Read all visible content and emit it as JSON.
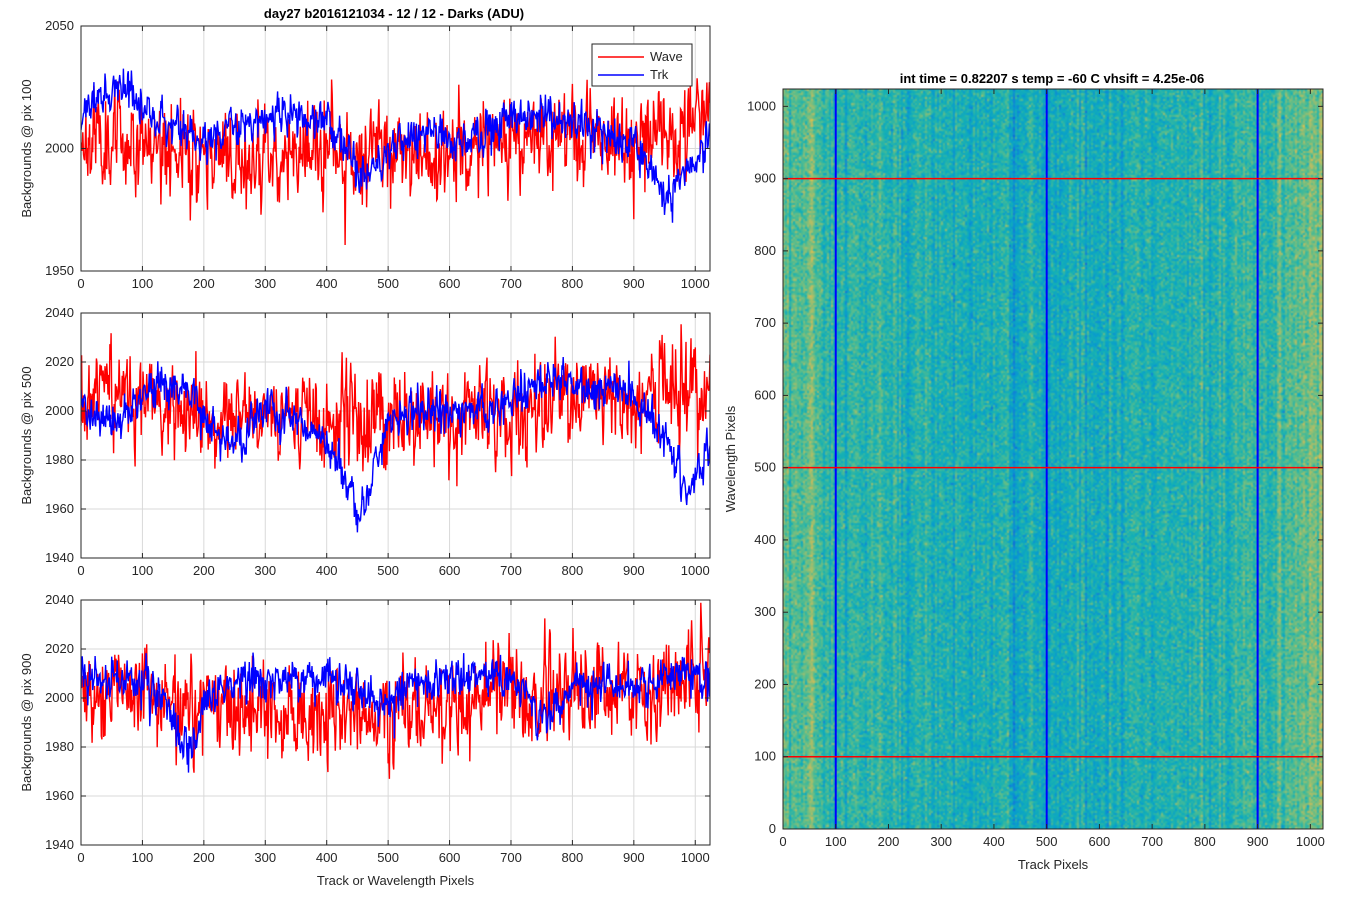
{
  "figure": {
    "suptitle": "day27 b2016121034 - 12 / 12 - Darks (ADU)",
    "colors": {
      "wave": "#ff0000",
      "trk": "#0000ff",
      "axis": "#262626",
      "grid": "#d9d9d9"
    }
  },
  "chart_data": [
    {
      "type": "line",
      "title": "day27 b2016121034 - 12 / 12 - Darks (ADU)",
      "xlabel": "",
      "ylabel": "Backgrounds @ pix 100",
      "xlim": [
        0,
        1024
      ],
      "ylim": [
        1950,
        2050
      ],
      "xticks": [
        0,
        100,
        200,
        300,
        400,
        500,
        600,
        700,
        800,
        900,
        1000
      ],
      "yticks": [
        1950,
        2000,
        2050
      ],
      "grid": true,
      "legend": {
        "position": "top-right",
        "entries": [
          "Wave",
          "Trk"
        ]
      },
      "series": [
        {
          "name": "Wave",
          "color": "#ff0000",
          "mean": 2003,
          "noise": 9,
          "seed": 11,
          "anchors": [
            [
              0,
              2005
            ],
            [
              100,
              2004
            ],
            [
              200,
              1996
            ],
            [
              300,
              1997
            ],
            [
              400,
              1999
            ],
            [
              500,
              2000
            ],
            [
              600,
              1998
            ],
            [
              700,
              2003
            ],
            [
              800,
              2005
            ],
            [
              900,
              2004
            ],
            [
              1024,
              2010
            ]
          ]
        },
        {
          "name": "Trk",
          "color": "#0000ff",
          "mean": 2008,
          "noise": 4,
          "seed": 23,
          "anchors": [
            [
              0,
              2012
            ],
            [
              30,
              2020
            ],
            [
              60,
              2028
            ],
            [
              100,
              2016
            ],
            [
              150,
              2008
            ],
            [
              200,
              2004
            ],
            [
              250,
              2008
            ],
            [
              300,
              2012
            ],
            [
              350,
              2014
            ],
            [
              400,
              2010
            ],
            [
              440,
              1998
            ],
            [
              460,
              1988
            ],
            [
              500,
              2000
            ],
            [
              550,
              2006
            ],
            [
              600,
              2005
            ],
            [
              650,
              2003
            ],
            [
              700,
              2010
            ],
            [
              750,
              2014
            ],
            [
              800,
              2012
            ],
            [
              850,
              2006
            ],
            [
              900,
              2002
            ],
            [
              930,
              1992
            ],
            [
              950,
              1978
            ],
            [
              990,
              1990
            ],
            [
              1024,
              2004
            ]
          ]
        }
      ]
    },
    {
      "type": "line",
      "title": "",
      "xlabel": "",
      "ylabel": "Backgrounds @ pix 500",
      "xlim": [
        0,
        1024
      ],
      "ylim": [
        1940,
        2040
      ],
      "xticks": [
        0,
        100,
        200,
        300,
        400,
        500,
        600,
        700,
        800,
        900,
        1000
      ],
      "yticks": [
        1940,
        1960,
        1980,
        2000,
        2020,
        2040
      ],
      "grid": true,
      "series": [
        {
          "name": "Wave",
          "color": "#ff0000",
          "mean": 2000,
          "noise": 9,
          "seed": 37,
          "anchors": [
            [
              0,
              2004
            ],
            [
              100,
              2008
            ],
            [
              200,
              1994
            ],
            [
              300,
              1997
            ],
            [
              400,
              1998
            ],
            [
              500,
              1997
            ],
            [
              600,
              2000
            ],
            [
              700,
              2000
            ],
            [
              800,
              2004
            ],
            [
              900,
              2006
            ],
            [
              1024,
              2010
            ]
          ]
        },
        {
          "name": "Trk",
          "color": "#0000ff",
          "mean": 2000,
          "noise": 4,
          "seed": 41,
          "anchors": [
            [
              0,
              2002
            ],
            [
              30,
              1996
            ],
            [
              60,
              1996
            ],
            [
              100,
              2006
            ],
            [
              150,
              2012
            ],
            [
              180,
              2006
            ],
            [
              200,
              1996
            ],
            [
              250,
              1986
            ],
            [
              300,
              2002
            ],
            [
              350,
              1996
            ],
            [
              400,
              1988
            ],
            [
              430,
              1974
            ],
            [
              450,
              1958
            ],
            [
              470,
              1970
            ],
            [
              500,
              1996
            ],
            [
              550,
              2000
            ],
            [
              600,
              2000
            ],
            [
              650,
              2000
            ],
            [
              700,
              2004
            ],
            [
              750,
              2012
            ],
            [
              800,
              2012
            ],
            [
              850,
              2010
            ],
            [
              900,
              2006
            ],
            [
              950,
              1990
            ],
            [
              980,
              1968
            ],
            [
              1000,
              1974
            ],
            [
              1024,
              1986
            ]
          ]
        }
      ]
    },
    {
      "type": "line",
      "title": "",
      "xlabel": "Track or Wavelength Pixels",
      "ylabel": "Backgrounds @ pix 900",
      "xlim": [
        0,
        1024
      ],
      "ylim": [
        1940,
        2040
      ],
      "xticks": [
        0,
        100,
        200,
        300,
        400,
        500,
        600,
        700,
        800,
        900,
        1000
      ],
      "yticks": [
        1940,
        1960,
        1980,
        2000,
        2020,
        2040
      ],
      "grid": true,
      "series": [
        {
          "name": "Wave",
          "color": "#ff0000",
          "mean": 1998,
          "noise": 9,
          "seed": 53,
          "anchors": [
            [
              0,
              2002
            ],
            [
              100,
              2002
            ],
            [
              200,
              1996
            ],
            [
              300,
              1995
            ],
            [
              400,
              1995
            ],
            [
              500,
              1994
            ],
            [
              600,
              1996
            ],
            [
              700,
              2000
            ],
            [
              800,
              2002
            ],
            [
              900,
              2004
            ],
            [
              1024,
              2012
            ]
          ]
        },
        {
          "name": "Trk",
          "color": "#0000ff",
          "mean": 2005,
          "noise": 4,
          "seed": 67,
          "anchors": [
            [
              0,
              2008
            ],
            [
              50,
              2008
            ],
            [
              100,
              2008
            ],
            [
              140,
              1996
            ],
            [
              160,
              1982
            ],
            [
              180,
              1976
            ],
            [
              200,
              1996
            ],
            [
              250,
              2006
            ],
            [
              300,
              2008
            ],
            [
              350,
              2006
            ],
            [
              400,
              2008
            ],
            [
              450,
              2004
            ],
            [
              500,
              2000
            ],
            [
              550,
              2006
            ],
            [
              600,
              2008
            ],
            [
              650,
              2006
            ],
            [
              700,
              2010
            ],
            [
              750,
              1990
            ],
            [
              800,
              2006
            ],
            [
              850,
              2006
            ],
            [
              900,
              2006
            ],
            [
              950,
              2008
            ],
            [
              1000,
              2010
            ],
            [
              1024,
              2012
            ]
          ]
        }
      ]
    },
    {
      "type": "heatmap",
      "title": "int time = 0.82207 s   temp = -60 C   vhsift = 4.25e-06",
      "xlabel": "Track Pixels",
      "ylabel": "Wavelength Pixels",
      "xlim": [
        0,
        1024
      ],
      "ylim": [
        0,
        1024
      ],
      "xticks": [
        0,
        100,
        200,
        300,
        400,
        500,
        600,
        700,
        800,
        900,
        1000
      ],
      "yticks": [
        0,
        100,
        200,
        300,
        400,
        500,
        600,
        700,
        800,
        900,
        1000
      ],
      "grid": false,
      "colormap": "parula",
      "vertical_lines": {
        "color": "#0000ff",
        "x": [
          100,
          500,
          900
        ]
      },
      "horizontal_lines": {
        "color": "#ff0000",
        "y": [
          100,
          500,
          900
        ]
      }
    }
  ]
}
